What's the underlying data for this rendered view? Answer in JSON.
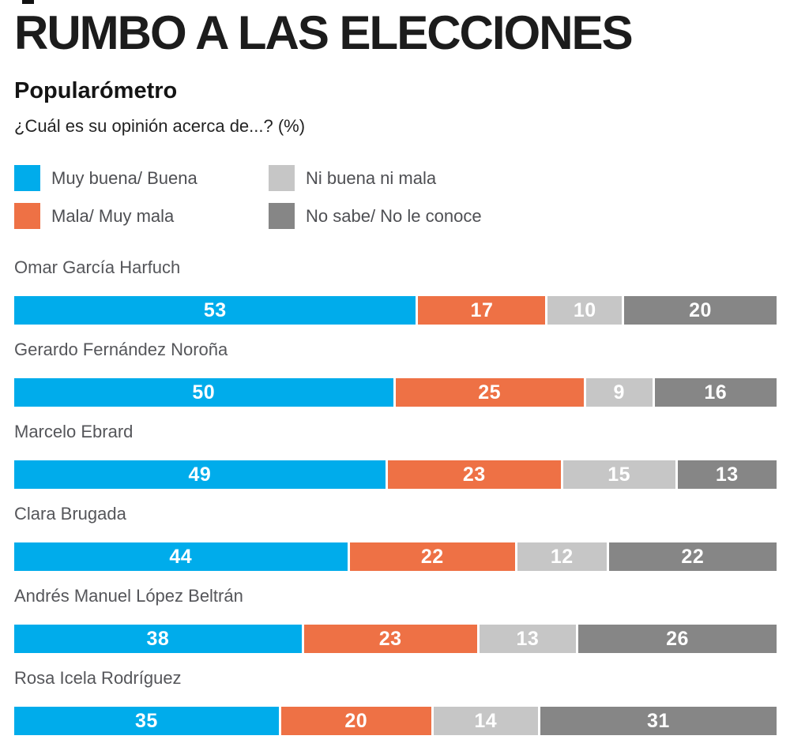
{
  "header": {
    "title": "RUMBO A LAS ELECCIONES",
    "subtitle": "Popularómetro",
    "question": "¿Cuál es su opinión acerca de...? (%)"
  },
  "legend": [
    {
      "label": "Muy buena/ Buena",
      "color": "#00ACEB"
    },
    {
      "label": "Ni buena ni mala",
      "color": "#C6C6C6"
    },
    {
      "label": "Mala/ Muy mala",
      "color": "#EE7145"
    },
    {
      "label": "No sabe/ No le conoce",
      "color": "#868686"
    }
  ],
  "chart_data": {
    "type": "bar",
    "variant": "horizontal-stacked",
    "title": "Popularómetro",
    "question": "¿Cuál es su opinión acerca de...? (%)",
    "unit": "%",
    "xlim": [
      0,
      100
    ],
    "grid": false,
    "legend_position": "top",
    "series_names": [
      "Muy buena/ Buena",
      "Mala/ Muy mala",
      "Ni buena ni mala",
      "No sabe/ No le conoce"
    ],
    "series_keys": [
      "muy-buena-buena",
      "mala-muy-mala",
      "ni-buena-ni-mala",
      "no-sabe-no-le-conoce"
    ],
    "series_colors": [
      "#00ACEB",
      "#EE7145",
      "#C6C6C6",
      "#868686"
    ],
    "value_label_color": "#FFFFFF",
    "rows": [
      {
        "name": "Omar García Harfuch",
        "values": [
          53,
          17,
          10,
          20
        ]
      },
      {
        "name": "Gerardo Fernández Noroña",
        "values": [
          50,
          25,
          9,
          16
        ]
      },
      {
        "name": "Marcelo Ebrard",
        "values": [
          49,
          23,
          15,
          13
        ]
      },
      {
        "name": "Clara Brugada",
        "values": [
          44,
          22,
          12,
          22
        ]
      },
      {
        "name": "Andrés Manuel López Beltrán",
        "values": [
          38,
          23,
          13,
          26
        ]
      },
      {
        "name": "Rosa Icela Rodríguez",
        "values": [
          35,
          20,
          14,
          31
        ]
      }
    ]
  }
}
